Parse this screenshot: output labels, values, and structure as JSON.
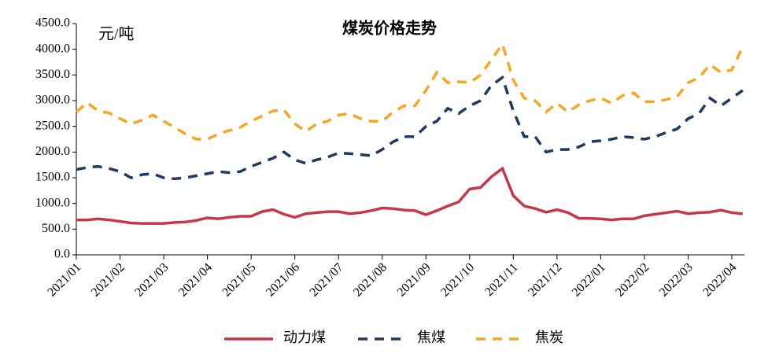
{
  "chart_data": {
    "type": "line",
    "title": "煤炭价格走势",
    "y_label": "元/吨",
    "categories": [
      "2021/01",
      null,
      null,
      null,
      "2021/02",
      null,
      null,
      null,
      "2021/03",
      null,
      null,
      null,
      "2021/04",
      null,
      null,
      null,
      "2021/05",
      null,
      null,
      null,
      "2021/06",
      null,
      null,
      null,
      "2021/07",
      null,
      null,
      null,
      "2021/08",
      null,
      null,
      null,
      "2021/09",
      null,
      null,
      null,
      "2021/10",
      null,
      null,
      null,
      "2021/11",
      null,
      null,
      null,
      "2021/12",
      null,
      null,
      null,
      "2022/01",
      null,
      null,
      null,
      "2022/02",
      null,
      null,
      null,
      "2022/03",
      null,
      null,
      null,
      "2022/04",
      null
    ],
    "series": [
      {
        "name": "动力煤",
        "color": "#c8364a",
        "dash": "solid",
        "values": [
          680,
          680,
          700,
          680,
          650,
          620,
          610,
          610,
          610,
          630,
          640,
          670,
          720,
          700,
          730,
          750,
          750,
          840,
          880,
          790,
          730,
          800,
          820,
          840,
          840,
          800,
          820,
          860,
          910,
          900,
          870,
          860,
          780,
          860,
          950,
          1030,
          1280,
          1310,
          1520,
          1680,
          1150,
          950,
          900,
          830,
          880,
          820,
          710,
          710,
          700,
          680,
          700,
          700,
          760,
          790,
          820,
          850,
          800,
          820,
          830,
          870,
          820,
          800
        ]
      },
      {
        "name": "焦煤",
        "color": "#203864",
        "dash": "dashed",
        "values": [
          1660,
          1700,
          1720,
          1680,
          1620,
          1500,
          1560,
          1580,
          1500,
          1480,
          1500,
          1540,
          1580,
          1620,
          1600,
          1620,
          1720,
          1800,
          1880,
          2000,
          1850,
          1780,
          1850,
          1900,
          1980,
          1970,
          1950,
          1930,
          2050,
          2200,
          2300,
          2300,
          2500,
          2600,
          2850,
          2750,
          2900,
          3000,
          3300,
          3450,
          2800,
          2300,
          2300,
          2000,
          2050,
          2050,
          2100,
          2200,
          2220,
          2250,
          2300,
          2280,
          2250,
          2300,
          2380,
          2450,
          2650,
          2750,
          3050,
          2900,
          3050,
          3200
        ]
      },
      {
        "name": "焦炭",
        "color": "#f5a623",
        "dash": "dashed",
        "values": [
          2780,
          2960,
          2800,
          2760,
          2650,
          2550,
          2620,
          2720,
          2600,
          2480,
          2350,
          2250,
          2250,
          2350,
          2420,
          2480,
          2600,
          2700,
          2800,
          2820,
          2550,
          2400,
          2550,
          2600,
          2720,
          2750,
          2650,
          2600,
          2600,
          2780,
          2900,
          2900,
          3200,
          3550,
          3350,
          3370,
          3350,
          3500,
          3800,
          4100,
          3400,
          3050,
          3000,
          2780,
          2950,
          2780,
          2920,
          3000,
          3050,
          2950,
          3100,
          3150,
          2980,
          2980,
          3020,
          3080,
          3350,
          3450,
          3700,
          3550,
          3600,
          4050
        ]
      }
    ],
    "ylim": [
      0,
      4500
    ],
    "yticks": [
      {
        "value": 0,
        "label": "0.0"
      },
      {
        "value": 500,
        "label": "500.0"
      },
      {
        "value": 1000,
        "label": "1000.0"
      },
      {
        "value": 1500,
        "label": "1500.0"
      },
      {
        "value": 2000,
        "label": "2000.0"
      },
      {
        "value": 2500,
        "label": "2500.0"
      },
      {
        "value": 3000,
        "label": "3000.0"
      },
      {
        "value": 3500,
        "label": "3500.0"
      },
      {
        "value": 4000,
        "label": "4000.0"
      },
      {
        "value": 4500,
        "label": "4500.0"
      }
    ],
    "grid": false,
    "legend": "bottom"
  }
}
